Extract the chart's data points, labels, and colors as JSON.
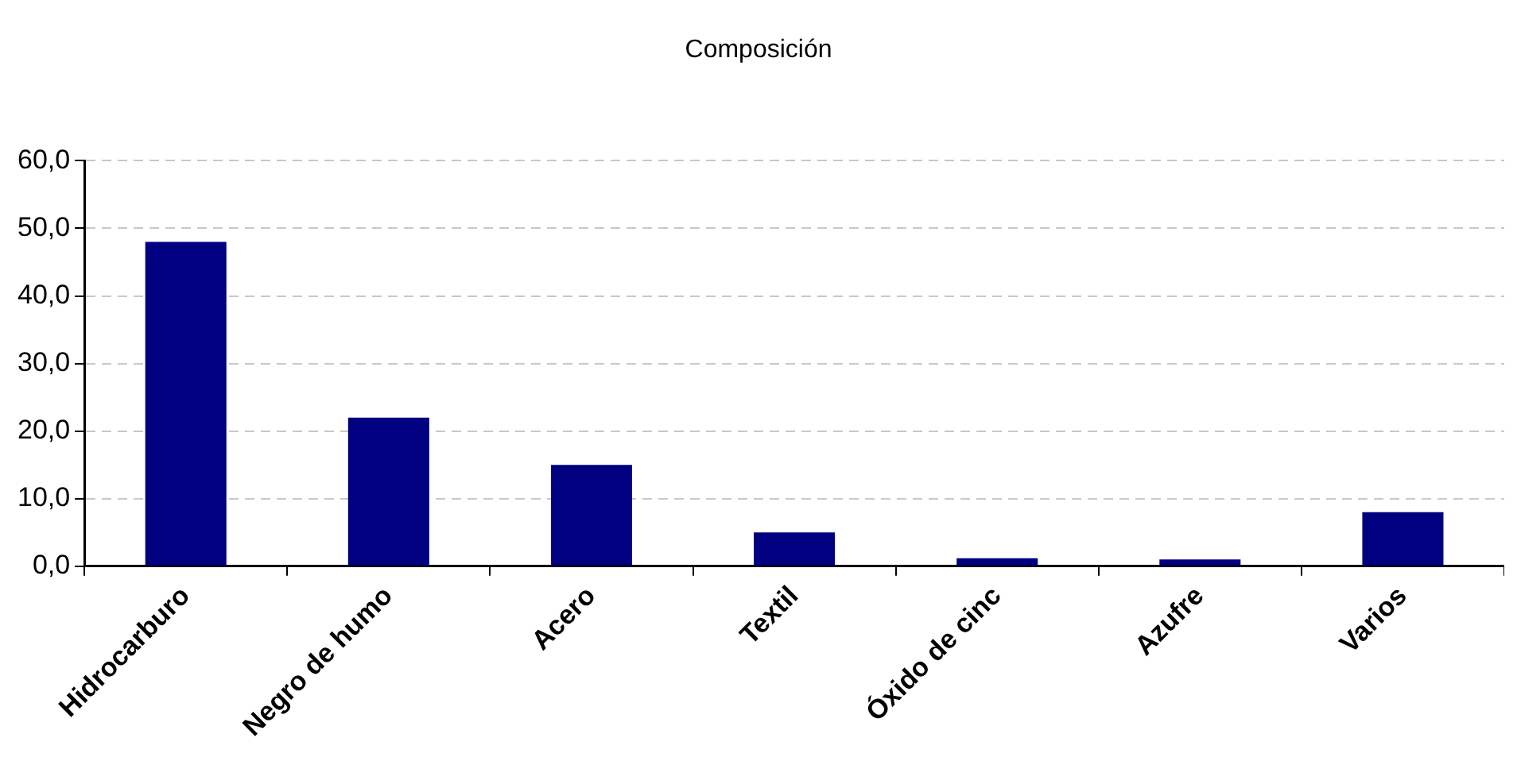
{
  "chart_data": {
    "type": "bar",
    "title": "Composición",
    "categories": [
      "Hidrocarburo",
      "Negro de humo",
      "Acero",
      "Textil",
      "Óxido de cinc",
      "Azufre",
      "Varios"
    ],
    "values": [
      48,
      22,
      15,
      5,
      1.2,
      1,
      8
    ],
    "color": "#000080",
    "ylim": [
      0,
      60
    ],
    "yticks": [
      {
        "value": 0,
        "label": "0,0"
      },
      {
        "value": 10,
        "label": "10,0"
      },
      {
        "value": 20,
        "label": "20,0"
      },
      {
        "value": 30,
        "label": "30,0"
      },
      {
        "value": 40,
        "label": "40,0"
      },
      {
        "value": 50,
        "label": "50,0"
      },
      {
        "value": 60,
        "label": "60,0"
      }
    ],
    "grid": "y",
    "legend": false
  }
}
